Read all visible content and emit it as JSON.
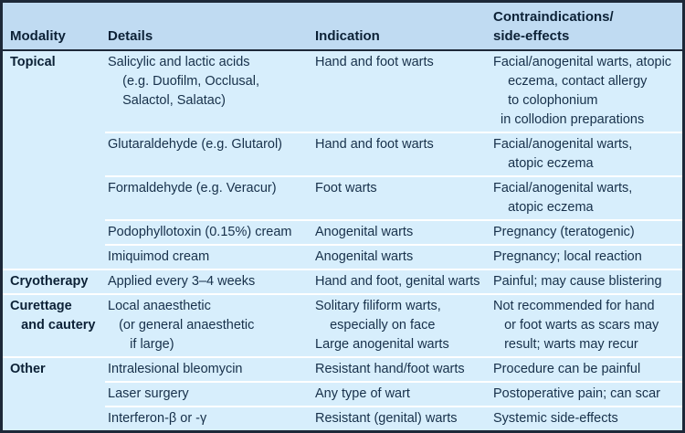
{
  "colors": {
    "border": "#1d2838",
    "header_bg": "#c0dbf2",
    "body_bg": "#d7eefc",
    "divider": "#ffffff",
    "text": "#17304a",
    "text_bold": "#0c2136"
  },
  "table": {
    "header": {
      "modality": "Modality",
      "details": "Details",
      "indication": "Indication",
      "contra_line1": "Contraindications/",
      "contra_line2": "side-effects"
    },
    "sections": [
      {
        "modality": [
          "Topical"
        ],
        "rows": [
          {
            "details": [
              "Salicylic and lactic acids",
              "    (e.g. Duofilm, Occlusal,",
              "    Salactol, Salatac)"
            ],
            "indication": [
              "Hand and foot warts"
            ],
            "contra": [
              "Facial/anogenital warts, atopic",
              "    eczema, contact allergy",
              "    to colophonium",
              "  in collodion preparations"
            ]
          },
          {
            "details": [
              "Glutaraldehyde (e.g. Glutarol)"
            ],
            "indication": [
              "Hand and foot warts"
            ],
            "contra": [
              "Facial/anogenital warts,",
              "    atopic eczema"
            ]
          },
          {
            "details": [
              "Formaldehyde (e.g. Veracur)"
            ],
            "indication": [
              "Foot warts"
            ],
            "contra": [
              "Facial/anogenital warts,",
              "    atopic eczema"
            ]
          },
          {
            "details": [
              "Podophyllotoxin (0.15%) cream"
            ],
            "indication": [
              "Anogenital warts"
            ],
            "contra": [
              "Pregnancy (teratogenic)"
            ]
          },
          {
            "details": [
              "Imiquimod cream"
            ],
            "indication": [
              "Anogenital warts"
            ],
            "contra": [
              "Pregnancy; local reaction"
            ]
          }
        ]
      },
      {
        "modality": [
          "Cryotherapy"
        ],
        "rows": [
          {
            "details": [
              "Applied every 3–4 weeks"
            ],
            "indication": [
              "Hand and foot, genital warts"
            ],
            "contra": [
              "Painful; may cause blistering"
            ]
          }
        ]
      },
      {
        "modality": [
          "Curettage",
          "   and cautery"
        ],
        "rows": [
          {
            "details": [
              "Local anaesthetic",
              "   (or general anaesthetic",
              "      if large)"
            ],
            "indication": [
              "Solitary filiform warts,",
              "    especially on face",
              "Large anogenital warts"
            ],
            "contra": [
              "Not recommended for hand",
              "   or foot warts as scars may",
              "   result; warts may recur"
            ]
          }
        ]
      },
      {
        "modality": [
          "Other"
        ],
        "rows": [
          {
            "details": [
              "Intralesional bleomycin"
            ],
            "indication": [
              "Resistant hand/foot warts"
            ],
            "contra": [
              "Procedure can be painful"
            ]
          },
          {
            "details": [
              "Laser surgery"
            ],
            "indication": [
              "Any type of wart"
            ],
            "contra": [
              "Postoperative pain; can scar"
            ]
          },
          {
            "details": [
              "Interferon-β or -γ"
            ],
            "indication": [
              "Resistant (genital) warts"
            ],
            "contra": [
              "Systemic side-effects"
            ]
          }
        ]
      }
    ]
  }
}
